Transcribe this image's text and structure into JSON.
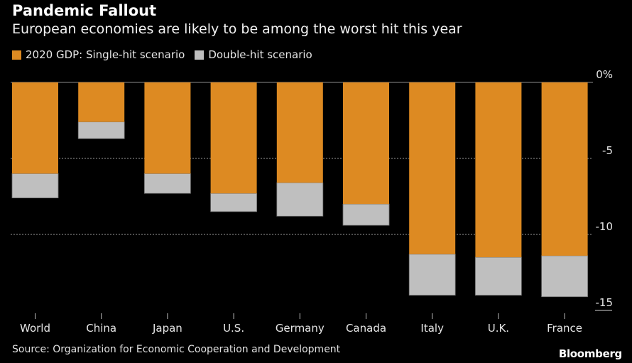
{
  "chart_data": {
    "type": "bar",
    "stacked": true,
    "title": "Pandemic Fallout",
    "subtitle": "European economies are likely to be among the worst hit this year",
    "categories": [
      "World",
      "China",
      "Japan",
      "U.S.",
      "Germany",
      "Canada",
      "Italy",
      "U.K.",
      "France"
    ],
    "series": [
      {
        "name": "2020 GDP: Single-hit scenario",
        "color": "#dd8a22",
        "values": [
          -6.0,
          -2.6,
          -6.0,
          -7.3,
          -6.6,
          -8.0,
          -11.3,
          -11.5,
          -11.4
        ]
      },
      {
        "name": "Double-hit scenario",
        "color": "#bfbfbf",
        "values": [
          -7.6,
          -3.7,
          -7.3,
          -8.5,
          -8.8,
          -9.4,
          -14.0,
          -14.0,
          -14.1
        ]
      }
    ],
    "xlabel": "",
    "ylabel": "",
    "ylim": [
      -15,
      0
    ],
    "yticks": [
      0,
      -5,
      -10,
      -15
    ],
    "ytick_labels": [
      "0%",
      "-5",
      "-10",
      "-15"
    ],
    "y_axis_position": "right",
    "grid": "dotted horizontal at -5 and -10",
    "legend_position": "top-left"
  },
  "source": "Source: Organization for Economic Cooperation and Development",
  "brand": "Bloomberg"
}
